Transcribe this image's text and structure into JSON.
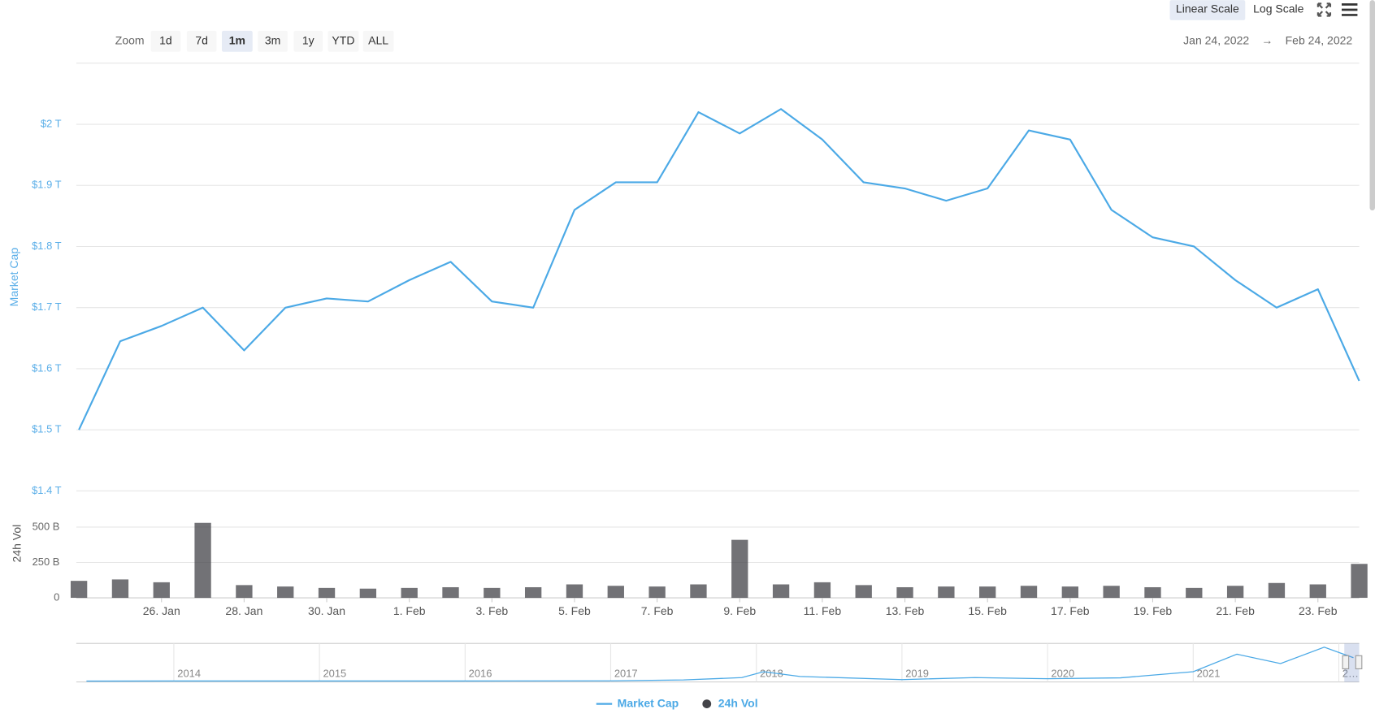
{
  "toolbar": {
    "zoom_label": "Zoom",
    "zoom_buttons": [
      "1d",
      "7d",
      "1m",
      "3m",
      "1y",
      "YTD",
      "ALL"
    ],
    "selected_zoom": 2,
    "scale_buttons": [
      "Linear Scale",
      "Log Scale"
    ],
    "selected_scale": 0,
    "date_from": "Jan 24, 2022",
    "arrow": "→",
    "date_to": "Feb 24, 2022"
  },
  "chart_data": {
    "type": "line",
    "ylabel": "Market Cap",
    "y2label": "24h Vol",
    "x": [
      "2022-01-24",
      "2022-01-25",
      "2022-01-26",
      "2022-01-27",
      "2022-01-28",
      "2022-01-29",
      "2022-01-30",
      "2022-01-31",
      "2022-02-01",
      "2022-02-02",
      "2022-02-03",
      "2022-02-04",
      "2022-02-05",
      "2022-02-06",
      "2022-02-07",
      "2022-02-08",
      "2022-02-09",
      "2022-02-10",
      "2022-02-11",
      "2022-02-12",
      "2022-02-13",
      "2022-02-14",
      "2022-02-15",
      "2022-02-16",
      "2022-02-17",
      "2022-02-18",
      "2022-02-19",
      "2022-02-20",
      "2022-02-21",
      "2022-02-22",
      "2022-02-23",
      "2022-02-24"
    ],
    "xlim": [
      "2022-01-24",
      "2022-02-24"
    ],
    "xticks": [
      {
        "value": "2022-01-26",
        "label": "26. Jan"
      },
      {
        "value": "2022-01-28",
        "label": "28. Jan"
      },
      {
        "value": "2022-01-30",
        "label": "30. Jan"
      },
      {
        "value": "2022-02-01",
        "label": "1. Feb"
      },
      {
        "value": "2022-02-03",
        "label": "3. Feb"
      },
      {
        "value": "2022-02-05",
        "label": "5. Feb"
      },
      {
        "value": "2022-02-07",
        "label": "7. Feb"
      },
      {
        "value": "2022-02-09",
        "label": "9. Feb"
      },
      {
        "value": "2022-02-11",
        "label": "11. Feb"
      },
      {
        "value": "2022-02-13",
        "label": "13. Feb"
      },
      {
        "value": "2022-02-15",
        "label": "15. Feb"
      },
      {
        "value": "2022-02-17",
        "label": "17. Feb"
      },
      {
        "value": "2022-02-19",
        "label": "19. Feb"
      },
      {
        "value": "2022-02-21",
        "label": "21. Feb"
      },
      {
        "value": "2022-02-23",
        "label": "23. Feb"
      }
    ],
    "ylim": [
      1.4,
      2.1
    ],
    "yticks": [
      {
        "value": 1.4,
        "label": "$1.4 T"
      },
      {
        "value": 1.5,
        "label": "$1.5 T"
      },
      {
        "value": 1.6,
        "label": "$1.6 T"
      },
      {
        "value": 1.7,
        "label": "$1.7 T"
      },
      {
        "value": 1.8,
        "label": "$1.8 T"
      },
      {
        "value": 1.9,
        "label": "$1.9 T"
      },
      {
        "value": 2,
        "label": "$2 T"
      }
    ],
    "y2lim": [
      0,
      570
    ],
    "y2ticks": [
      0,
      {
        "value": 250,
        "label": "250 B"
      },
      {
        "value": 500,
        "label": "500 B"
      }
    ],
    "grid": true,
    "series": [
      {
        "name": "Market Cap",
        "color": "#4ba9e6",
        "type": "line",
        "values": [
          1.5,
          1.645,
          1.67,
          1.7,
          1.63,
          1.7,
          1.715,
          1.71,
          1.745,
          1.775,
          1.71,
          1.7,
          1.86,
          1.905,
          1.905,
          2.02,
          1.985,
          2.025,
          1.975,
          1.905,
          1.895,
          1.875,
          1.895,
          1.99,
          1.975,
          1.86,
          1.815,
          1.8,
          1.745,
          1.7,
          1.73,
          1.58
        ]
      },
      {
        "name": "24h Vol",
        "color": "#434348",
        "type": "bar",
        "axis": "y2",
        "values": [
          120,
          130,
          110,
          530,
          90,
          80,
          70,
          65,
          70,
          75,
          70,
          75,
          95,
          85,
          80,
          95,
          410,
          95,
          110,
          90,
          75,
          80,
          80,
          85,
          80,
          85,
          75,
          70,
          85,
          105,
          95,
          240
        ]
      }
    ],
    "navigator": {
      "x": [
        2013.4,
        2014,
        2015,
        2016,
        2017,
        2017.5,
        2017.9,
        2018.05,
        2018.3,
        2019,
        2019.5,
        2020,
        2020.5,
        2021,
        2021.3,
        2021.6,
        2021.9,
        2022.1
      ],
      "values": [
        0.001,
        0.01,
        0.005,
        0.007,
        0.02,
        0.1,
        0.3,
        0.8,
        0.4,
        0.13,
        0.3,
        0.2,
        0.28,
        0.8,
        2.3,
        1.5,
        2.9,
        2.0
      ],
      "xlim": [
        2013.33,
        2022.14
      ],
      "ylim": [
        0,
        3
      ],
      "xticks": [
        2014,
        2015,
        2016,
        2017,
        2018,
        2019,
        2020,
        2021,
        {
          "value": 2022,
          "label": "2…"
        }
      ]
    }
  }
}
